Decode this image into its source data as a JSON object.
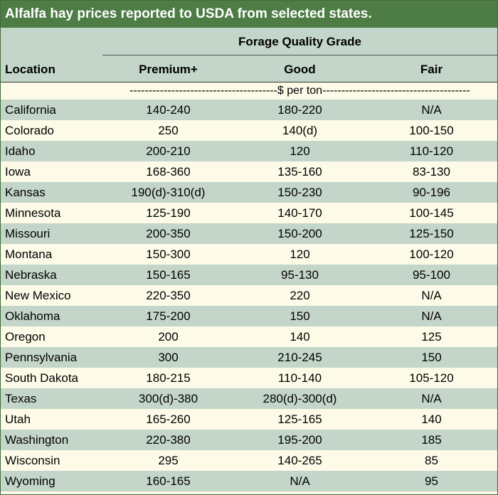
{
  "title": "Alfalfa hay prices reported to USDA from selected states.",
  "header": {
    "group_label": "Forage Quality Grade",
    "location": "Location",
    "premium": "Premium+",
    "good": "Good",
    "fair": "Fair"
  },
  "units": "---------------------------------------$ per ton---------------------------------------",
  "colors": {
    "title_bg": "#4d7c45",
    "band_green": "#c4d6c9",
    "band_cream": "#fdfbe8"
  },
  "rows": [
    {
      "location": "California",
      "premium": "140-240",
      "good": "180-220",
      "fair": "N/A"
    },
    {
      "location": "Colorado",
      "premium": "250",
      "good": "140(d)",
      "fair": "100-150"
    },
    {
      "location": "Idaho",
      "premium": "200-210",
      "good": "120",
      "fair": "110-120"
    },
    {
      "location": "Iowa",
      "premium": "168-360",
      "good": "135-160",
      "fair": "83-130"
    },
    {
      "location": "Kansas",
      "premium": "190(d)-310(d)",
      "good": "150-230",
      "fair": "90-196"
    },
    {
      "location": "Minnesota",
      "premium": "125-190",
      "good": "140-170",
      "fair": "100-145"
    },
    {
      "location": "Missouri",
      "premium": "200-350",
      "good": "150-200",
      "fair": "125-150"
    },
    {
      "location": "Montana",
      "premium": "150-300",
      "good": "120",
      "fair": "100-120"
    },
    {
      "location": "Nebraska",
      "premium": "150-165",
      "good": "95-130",
      "fair": "95-100"
    },
    {
      "location": "New Mexico",
      "premium": "220-350",
      "good": "220",
      "fair": "N/A"
    },
    {
      "location": "Oklahoma",
      "premium": "175-200",
      "good": "150",
      "fair": "N/A"
    },
    {
      "location": "Oregon",
      "premium": "200",
      "good": "140",
      "fair": "125"
    },
    {
      "location": "Pennsylvania",
      "premium": "300",
      "good": "210-245",
      "fair": "150"
    },
    {
      "location": "South Dakota",
      "premium": "180-215",
      "good": "110-140",
      "fair": "105-120"
    },
    {
      "location": "Texas",
      "premium": "300(d)-380",
      "good": "280(d)-300(d)",
      "fair": "N/A"
    },
    {
      "location": "Utah",
      "premium": "165-260",
      "good": "125-165",
      "fair": "140"
    },
    {
      "location": "Washington",
      "premium": "220-380",
      "good": "195-200",
      "fair": "185"
    },
    {
      "location": "Wisconsin",
      "premium": "295",
      "good": "140-265",
      "fair": "85"
    },
    {
      "location": "Wyoming",
      "premium": "160-165",
      "good": "N/A",
      "fair": "95"
    }
  ]
}
